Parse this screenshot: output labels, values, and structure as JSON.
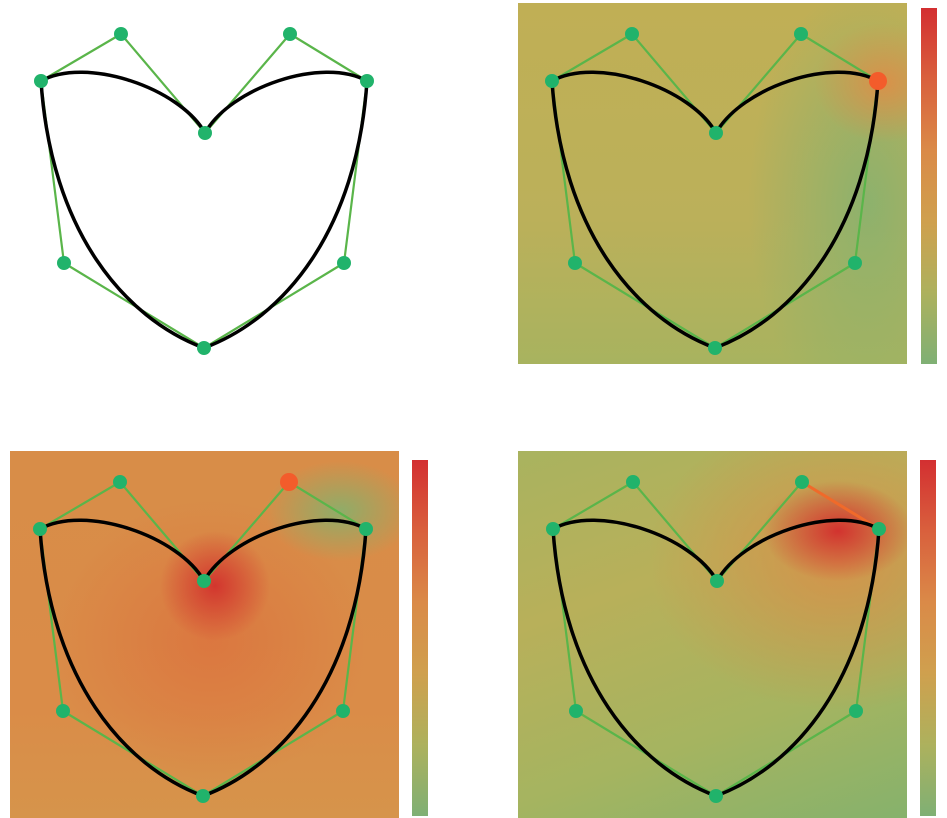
{
  "palette": {
    "curve": "#000000",
    "polygon": "#5ab54a",
    "control_point": "#21b36b",
    "selected_point": "#f35c2b",
    "highlight_edge": "#f06a2a",
    "colormap": [
      "#7fb273",
      "#a8b55e",
      "#c7a84f",
      "#d9924a",
      "#d96a3c",
      "#d03a32"
    ]
  },
  "control_points": [
    "P0",
    "P1",
    "P2",
    "P3",
    "P4",
    "P5",
    "P6",
    "P7"
  ],
  "panels": [
    {
      "id": "curve-only",
      "field": "none",
      "selected": []
    },
    {
      "id": "influence-right-lobe",
      "field": "right-lobe",
      "selected": [
        "P2"
      ]
    },
    {
      "id": "influence-top-handle",
      "field": "top-handle",
      "selected": [
        "P1"
      ]
    },
    {
      "id": "influence-edge",
      "field": "edge",
      "selected": [
        "P1",
        "P2"
      ]
    }
  ]
}
